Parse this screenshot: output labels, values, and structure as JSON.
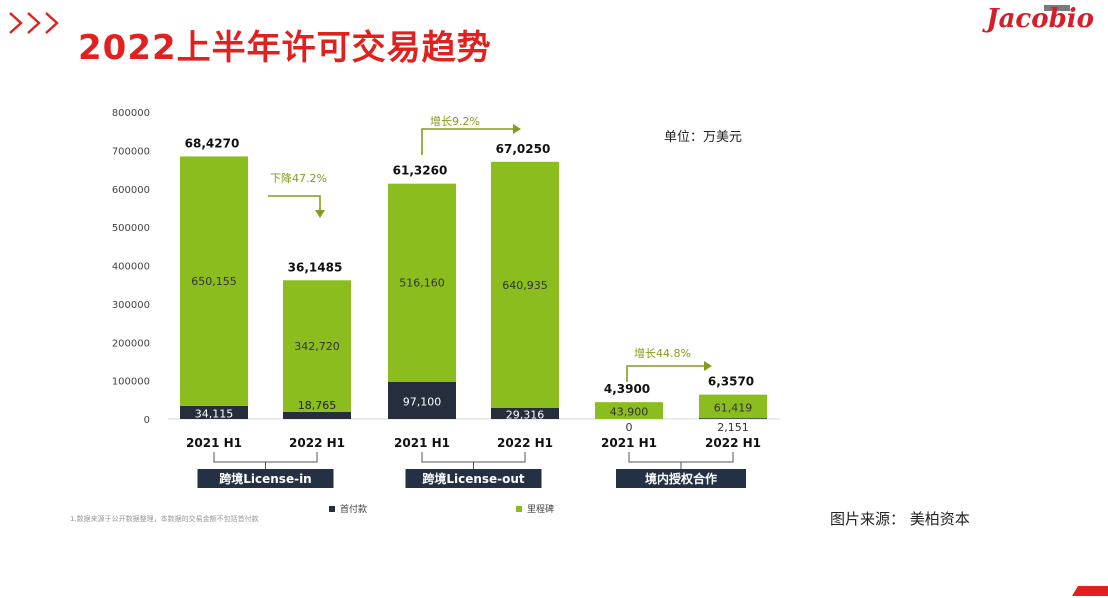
{
  "page": {
    "title": "2022上半年许可交易趋势",
    "logo": "Jacobio",
    "source": "图片来源： 美柏资本",
    "footnote": "1.数据来源于公开数据整理，本数据的交易金额不包括首付款",
    "colors": {
      "title": "#e0211f",
      "upfront": "#262e3e",
      "milestone": "#8cbd1f",
      "arrow": "#8a9a1a",
      "group_label_bg": "#243044"
    }
  },
  "chart_data": {
    "type": "bar",
    "stacked": true,
    "unit": "单位：万美元",
    "ylim": [
      0,
      800000
    ],
    "yticks": [
      0,
      100000,
      200000,
      300000,
      400000,
      500000,
      600000,
      700000,
      800000
    ],
    "ytick_labels": [
      "0",
      "100000",
      "200000",
      "300000",
      "400000",
      "500000",
      "600000",
      "700000",
      "800000"
    ],
    "categories": [
      "2021 H1",
      "2022 H1",
      "2021 H1",
      "2022 H1",
      "2021 H1",
      "2022 H1"
    ],
    "groups": [
      "跨境License-in",
      "跨境License-out",
      "境内授权合作"
    ],
    "series": [
      {
        "name": "首付款",
        "values": [
          34115,
          18765,
          97100,
          29316,
          0,
          2151
        ],
        "labels": [
          "34,115",
          "18,765",
          "97,100",
          "29,316",
          "0",
          "2,151"
        ]
      },
      {
        "name": "里程碑",
        "values": [
          650155,
          342720,
          516160,
          640935,
          43900,
          61419
        ],
        "labels": [
          "650,155",
          "342,720",
          "516,160",
          "640,935",
          "43,900",
          "61,419"
        ]
      }
    ],
    "totals": [
      "68,4270",
      "36,1485",
      "61,3260",
      "67,0250",
      "4,3900",
      "6,3570"
    ],
    "annotations": [
      "下降47.2%",
      "增长9.2%",
      "增长44.8%"
    ],
    "legend": "bottom"
  }
}
